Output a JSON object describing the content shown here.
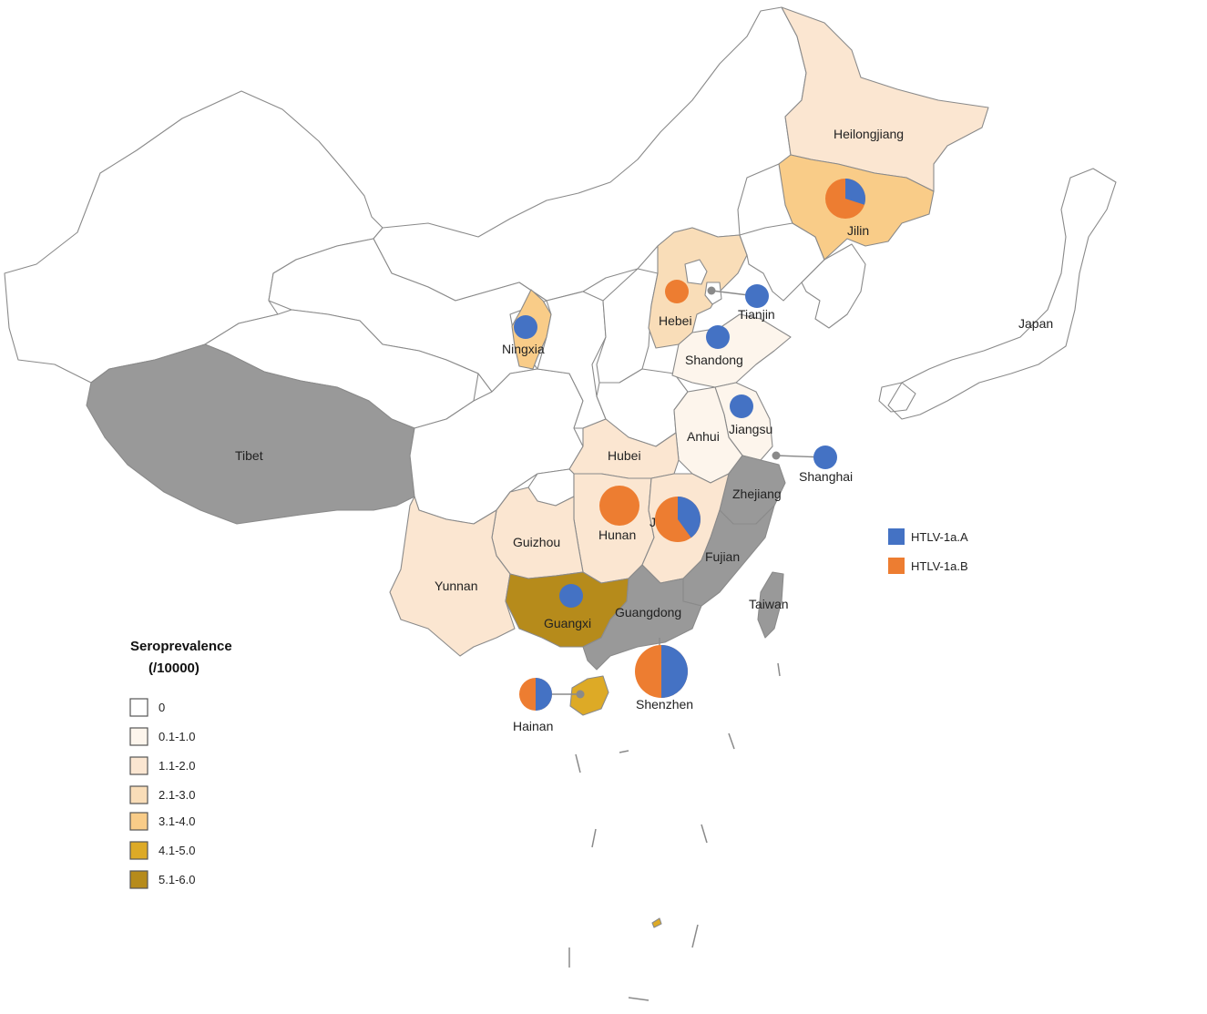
{
  "legend": {
    "title_line1": "Seroprevalence",
    "title_line2": "(/10000)",
    "classes": [
      {
        "label": "0",
        "color": "#ffffff"
      },
      {
        "label": "0.1-1.0",
        "color": "#fdf5ec"
      },
      {
        "label": "1.1-2.0",
        "color": "#fbe6d1"
      },
      {
        "label": "2.1-3.0",
        "color": "#f9ddb8"
      },
      {
        "label": "3.1-4.0",
        "color": "#f9cc88"
      },
      {
        "label": "4.1-5.0",
        "color": "#ddaa26"
      },
      {
        "label": "5.1-6.0",
        "color": "#b68b1b"
      }
    ],
    "no_data_color": "#999999"
  },
  "genotypes": [
    {
      "label": "HTLV-1a.A",
      "color": "#4472c4"
    },
    {
      "label": "HTLV-1a.B",
      "color": "#ed7d31"
    }
  ],
  "labels": {
    "heilongjiang": "Heilongjiang",
    "jilin": "Jilin",
    "hebei": "Hebei",
    "tianjin": "Tianjin",
    "ningxia": "Ningxia",
    "shandong": "Shandong",
    "jiangsu": "Jiangsu",
    "anhui": "Anhui",
    "shanghai": "Shanghai",
    "hubei": "Hubei",
    "zhejiang": "Zhejiang",
    "tibet": "Tibet",
    "hunan": "Hunan",
    "jiangxi": "Jiangxi",
    "guizhou": "Guizhou",
    "fujian": "Fujian",
    "yunnan": "Yunnan",
    "guangxi": "Guangxi",
    "guangdong": "Guangdong",
    "taiwan": "Taiwan",
    "shenzhen": "Shenzhen",
    "hainan": "Hainan",
    "japan": "Japan"
  },
  "pies": [
    {
      "site": "Jilin",
      "a_fraction": 0.3
    },
    {
      "site": "Hebei",
      "a_fraction": 0.0
    },
    {
      "site": "Tianjin",
      "a_fraction": 1.0
    },
    {
      "site": "Ningxia",
      "a_fraction": 1.0
    },
    {
      "site": "Shandong",
      "a_fraction": 1.0
    },
    {
      "site": "Jiangsu",
      "a_fraction": 1.0
    },
    {
      "site": "Shanghai",
      "a_fraction": 1.0
    },
    {
      "site": "Hunan",
      "a_fraction": 0.0
    },
    {
      "site": "Jiangxi",
      "a_fraction": 0.4
    },
    {
      "site": "Guangxi",
      "a_fraction": 1.0
    },
    {
      "site": "Shenzhen",
      "a_fraction": 0.5
    },
    {
      "site": "Hainan",
      "a_fraction": 0.5
    }
  ]
}
